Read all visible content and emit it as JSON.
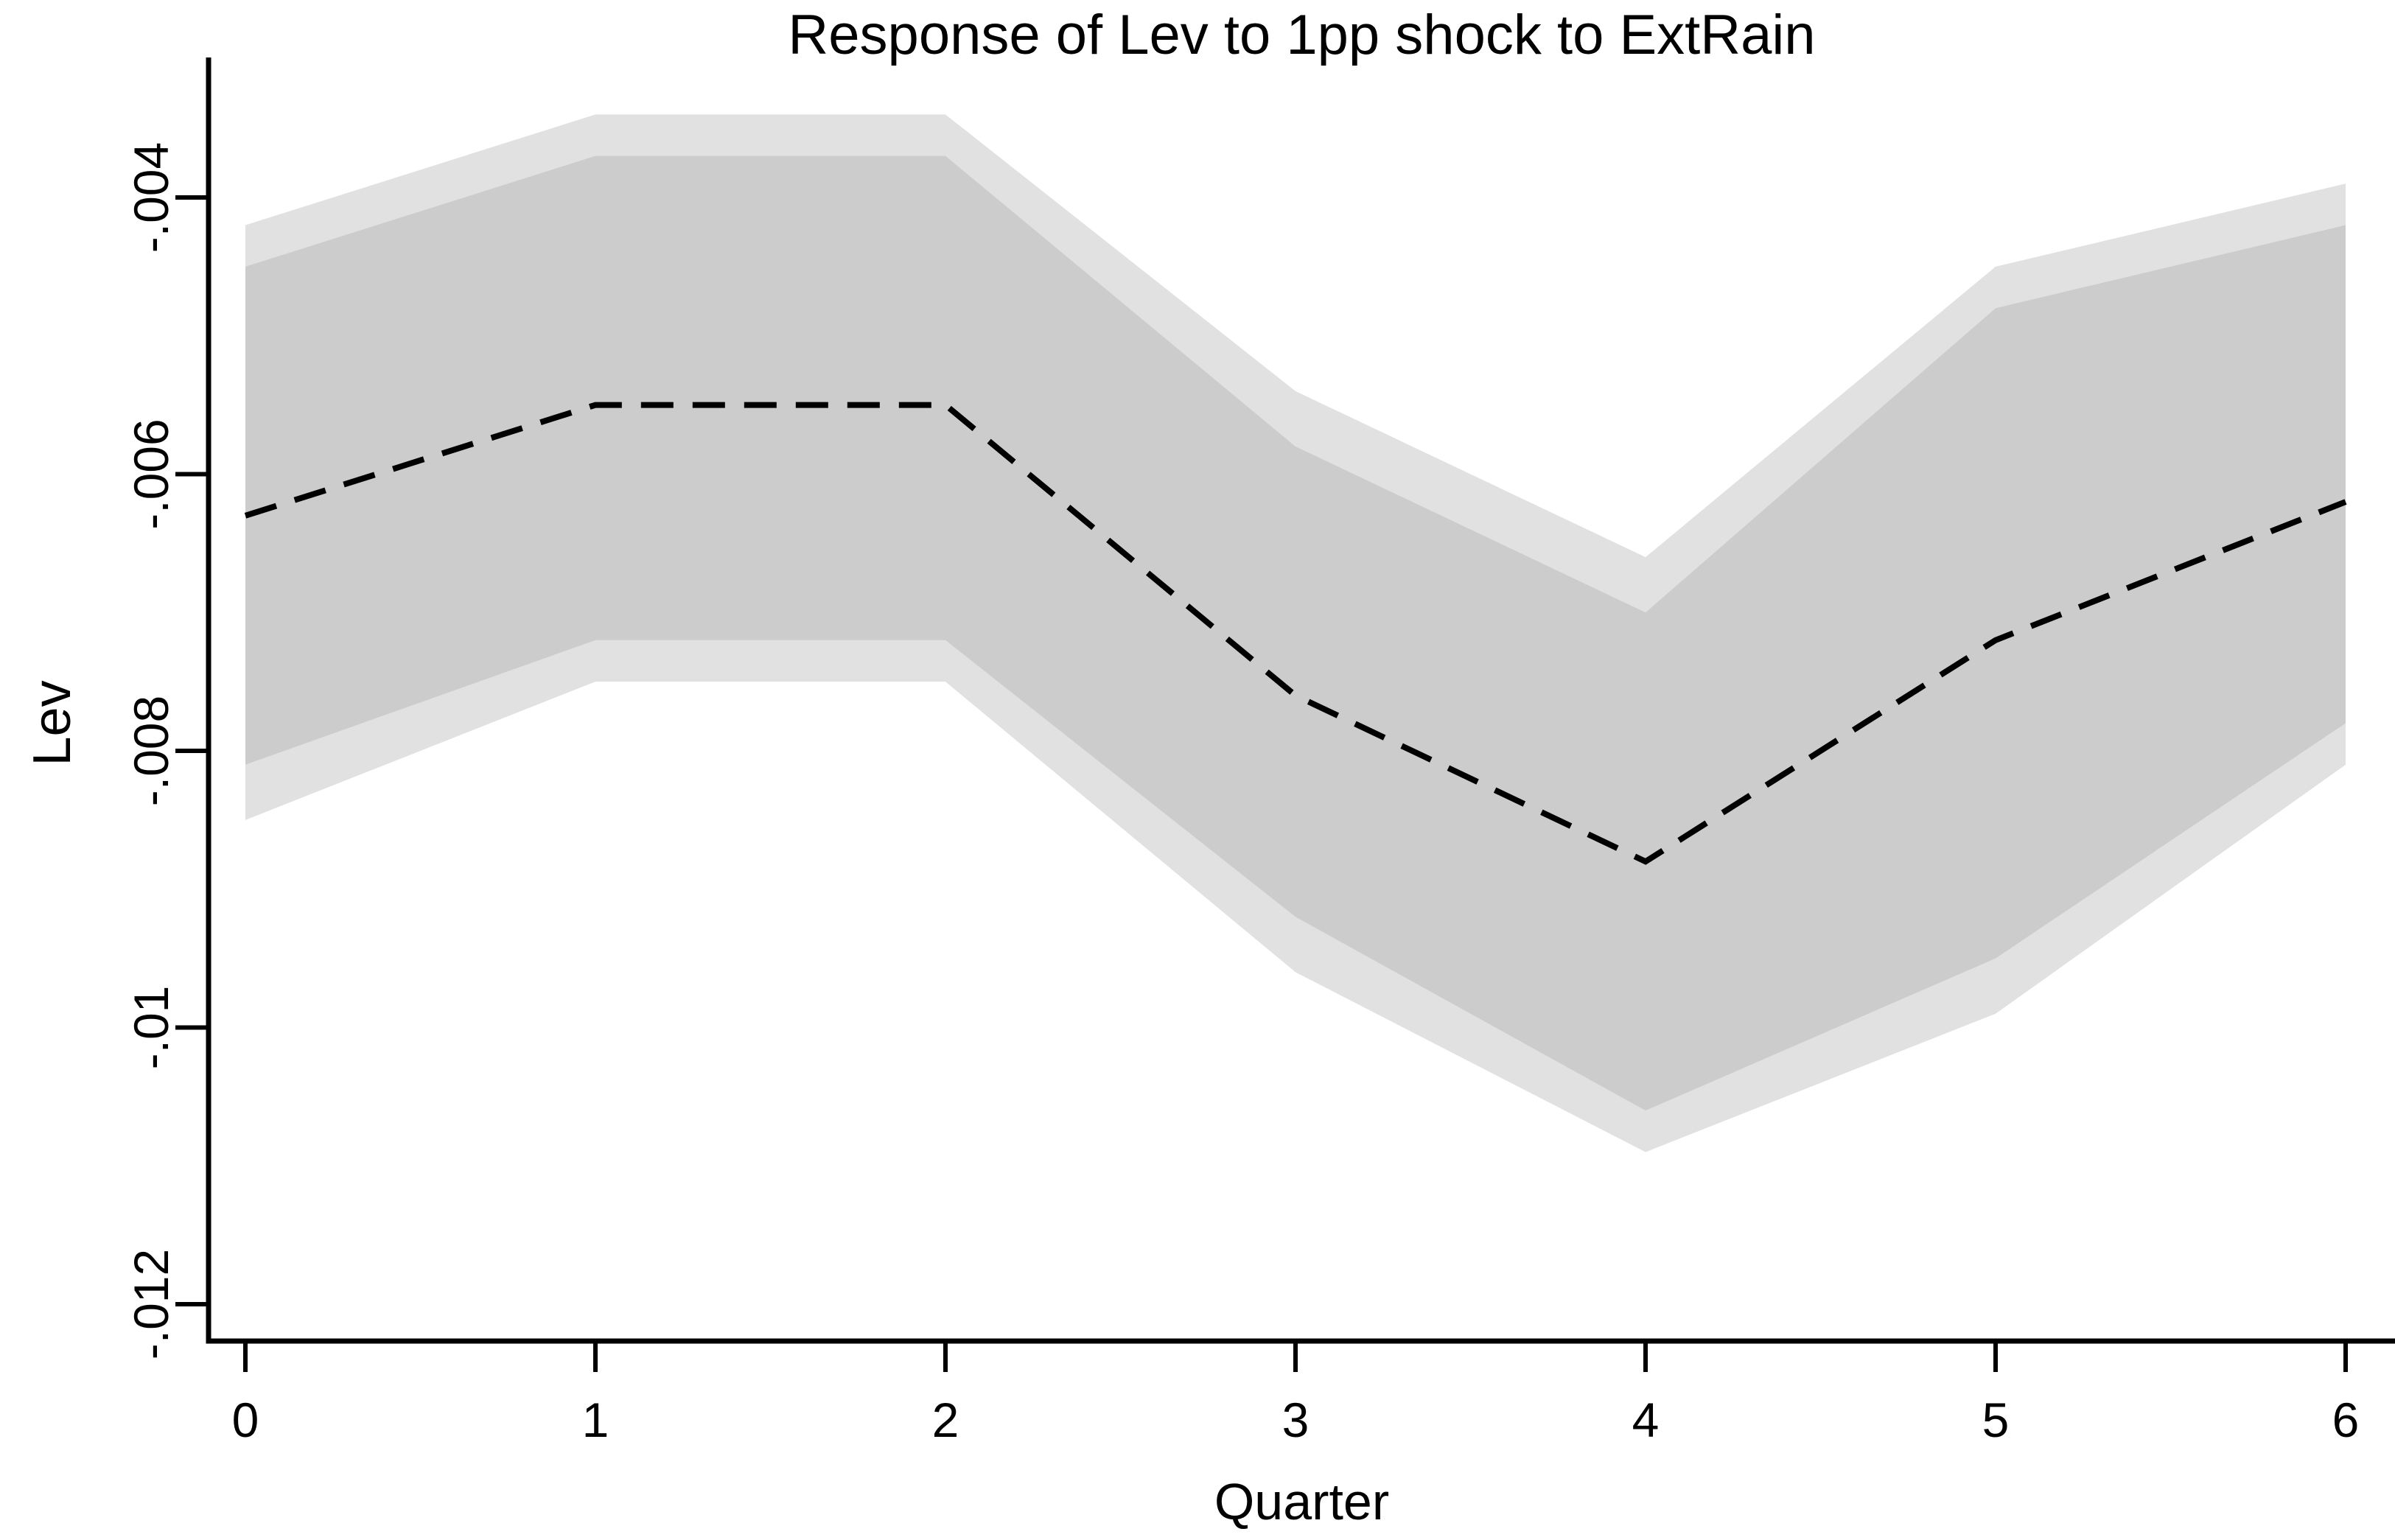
{
  "chart_data": {
    "type": "area",
    "title": "Response of Lev to 1pp shock to ExtRain",
    "xlabel": "Quarter",
    "ylabel": "Lev",
    "x": [
      0,
      1,
      2,
      3,
      4,
      5,
      6
    ],
    "x_tick_labels": [
      "0",
      "1",
      "2",
      "3",
      "4",
      "5",
      "6"
    ],
    "y_tick_values": [
      -0.004,
      -0.006,
      -0.008,
      -0.01,
      -0.012
    ],
    "y_tick_labels": [
      "-.004",
      "-.006",
      "-.008",
      "-.01",
      "-.012"
    ],
    "xlim": [
      -0.105,
      6.14
    ],
    "ylim": [
      -0.01235,
      -0.003
    ],
    "grid": false,
    "legend": null,
    "series": [
      {
        "name": "irf_point_estimate",
        "type": "line",
        "style": "dashed",
        "color": "#000000",
        "values": [
          -0.0063,
          -0.0055,
          -0.0055,
          -0.0076,
          -0.0088,
          -0.0072,
          -0.0062
        ]
      },
      {
        "name": "ci_band_inner",
        "type": "band",
        "color": "#cccccc",
        "upper": [
          -0.0045,
          -0.0037,
          -0.0037,
          -0.0058,
          -0.007,
          -0.0048,
          -0.0042
        ],
        "lower": [
          -0.0081,
          -0.0072,
          -0.0072,
          -0.0092,
          -0.0106,
          -0.0095,
          -0.0078
        ]
      },
      {
        "name": "ci_band_outer",
        "type": "band",
        "color": "#e1e1e1",
        "upper": [
          -0.0042,
          -0.0034,
          -0.0034,
          -0.0054,
          -0.0066,
          -0.0045,
          -0.0039
        ],
        "lower": [
          -0.0085,
          -0.0075,
          -0.0075,
          -0.0096,
          -0.0109,
          -0.0099,
          -0.0081
        ]
      }
    ]
  },
  "colors": {
    "background": "#ffffff",
    "axis": "#000000",
    "text": "#000000",
    "band_inner": "#cccccc",
    "band_outer": "#e1e1e1"
  }
}
